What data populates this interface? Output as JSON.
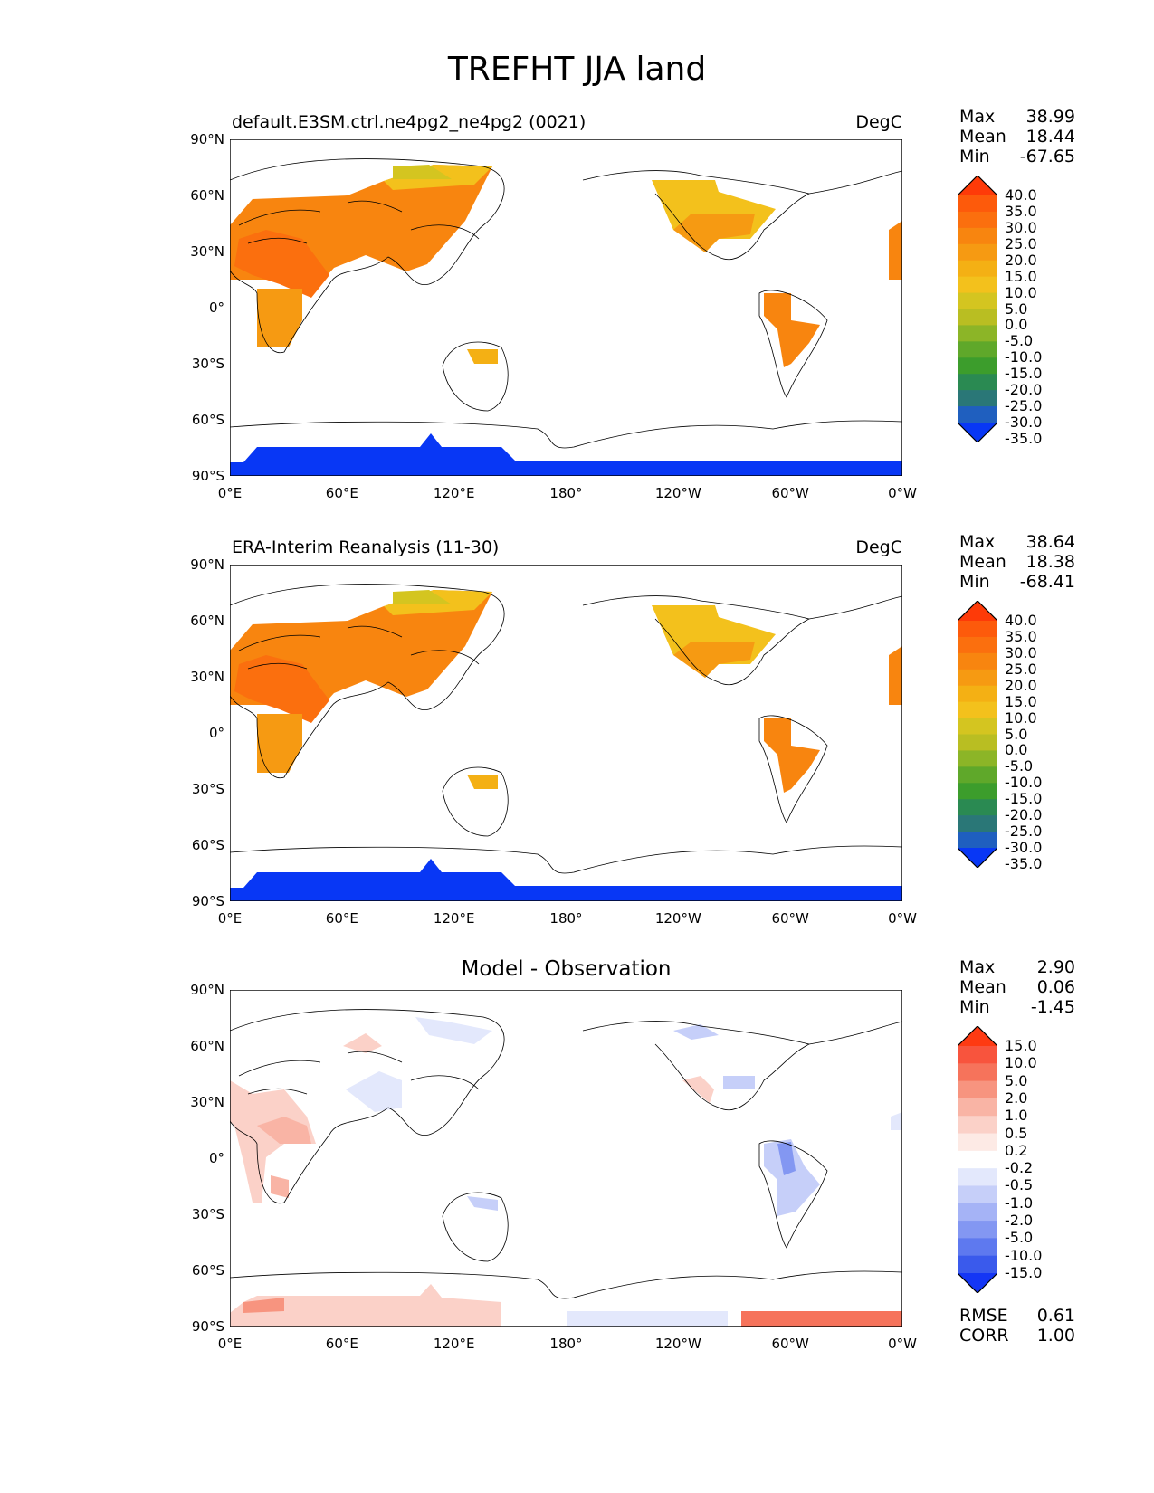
{
  "figure_title": "TREFHT JJA land",
  "panels": [
    {
      "title_left": "default.E3SM.ctrl.ne4pg2_ne4pg2 (0021)",
      "title_right": "DegC",
      "title_center": "",
      "stats": {
        "max_label": "Max",
        "max": "38.99",
        "mean_label": "Mean",
        "mean": "18.44",
        "min_label": "Min",
        "min": "-67.65"
      },
      "colorbar": {
        "labels": [
          "40.0",
          "35.0",
          "30.0",
          "25.0",
          "20.0",
          "15.0",
          "10.0",
          "5.0",
          "0.0",
          "-5.0",
          "-10.0",
          "-15.0",
          "-20.0",
          "-25.0",
          "-30.0",
          "-35.0"
        ],
        "colors": [
          "#fe3a08",
          "#fd5a0b",
          "#fb6f0e",
          "#f8850f",
          "#f69a12",
          "#f4b014",
          "#f3c11c",
          "#d4c520",
          "#b9be22",
          "#8cb527",
          "#5fa82a",
          "#3c9d2c",
          "#2a8a52",
          "#2a7777",
          "#1f5fbf",
          "#0837f5"
        ]
      }
    },
    {
      "title_left": "ERA-Interim Reanalysis (11-30)",
      "title_right": "DegC",
      "title_center": "",
      "stats": {
        "max_label": "Max",
        "max": "38.64",
        "mean_label": "Mean",
        "mean": "18.38",
        "min_label": "Min",
        "min": "-68.41"
      },
      "colorbar": {
        "labels": [
          "40.0",
          "35.0",
          "30.0",
          "25.0",
          "20.0",
          "15.0",
          "10.0",
          "5.0",
          "0.0",
          "-5.0",
          "-10.0",
          "-15.0",
          "-20.0",
          "-25.0",
          "-30.0",
          "-35.0"
        ],
        "colors": [
          "#fe3a08",
          "#fd5a0b",
          "#fb6f0e",
          "#f8850f",
          "#f69a12",
          "#f4b014",
          "#f3c11c",
          "#d4c520",
          "#b9be22",
          "#8cb527",
          "#5fa82a",
          "#3c9d2c",
          "#2a8a52",
          "#2a7777",
          "#1f5fbf",
          "#0837f5"
        ]
      }
    },
    {
      "title_left": "",
      "title_right": "",
      "title_center": "Model - Observation",
      "stats": {
        "max_label": "Max",
        "max": "2.90",
        "mean_label": "Mean",
        "mean": "0.06",
        "min_label": "Min",
        "min": "-1.45"
      },
      "extra": {
        "rmse_label": "RMSE",
        "rmse": "0.61",
        "corr_label": "CORR",
        "corr": "1.00"
      },
      "colorbar": {
        "labels": [
          "15.0",
          "10.0",
          "5.0",
          "2.0",
          "1.0",
          "0.5",
          "0.2",
          "-0.2",
          "-0.5",
          "-1.0",
          "-2.0",
          "-5.0",
          "-10.0",
          "-15.0"
        ],
        "colors": [
          "#fe3a12",
          "#f8543d",
          "#f6735b",
          "#f7947f",
          "#f9b4a5",
          "#fbd1c8",
          "#fdeae5",
          "#ffffff",
          "#e3e8fc",
          "#c6cff9",
          "#a5b3f6",
          "#8397f2",
          "#5e79ef",
          "#3a5aec",
          "#1436f5"
        ]
      }
    }
  ],
  "axes": {
    "lat_ticks": [
      "90°N",
      "60°N",
      "30°N",
      "0°",
      "30°S",
      "60°S",
      "90°S"
    ],
    "lon_ticks": [
      "0°E",
      "60°E",
      "120°E",
      "180°",
      "120°W",
      "60°W",
      "0°W"
    ]
  }
}
